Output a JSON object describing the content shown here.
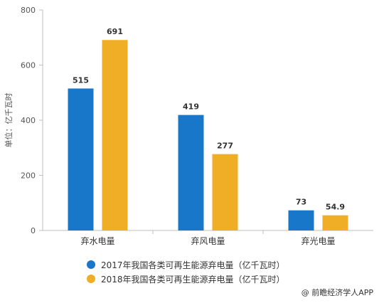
{
  "chart_data": {
    "type": "bar",
    "categories": [
      "弃水电量",
      "弃风电量",
      "弃光电量"
    ],
    "series": [
      {
        "name": "2017年我国各类可再生能源弃电量（亿千瓦时）",
        "values": [
          515,
          419,
          73
        ],
        "labels": [
          "515",
          "419",
          "73"
        ],
        "color": "#1877c9"
      },
      {
        "name": "2018年我国各类可再生能源弃电量（亿千瓦时）",
        "values": [
          691,
          277,
          54.9
        ],
        "labels": [
          "691",
          "277",
          "54.9"
        ],
        "color": "#f0ad26"
      }
    ],
    "ylabel": "单位：亿千瓦时",
    "ylim": [
      0,
      800
    ],
    "yticks": [
      0,
      200,
      400,
      600,
      800
    ],
    "ytick_labels": [
      "0",
      "200",
      "400",
      "600",
      "800"
    ],
    "grid": false,
    "legend_position": "bottom-left"
  },
  "credit": "@ 前瞻经济学人APP"
}
